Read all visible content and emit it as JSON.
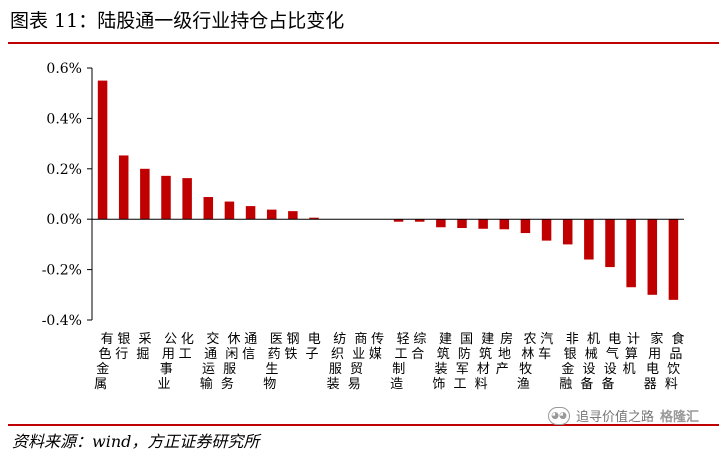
{
  "header": {
    "title": "图表 11：陆股通一级行业持仓占比变化"
  },
  "footer": {
    "source": "资料来源：wind，方正证券研究所"
  },
  "watermark": {
    "icon": "wechat-icon",
    "text": "追寻价值之路",
    "brand": "格隆汇"
  },
  "colors": {
    "bar": "#c00000",
    "rule": "#c00000",
    "axis": "#000000"
  },
  "chart_data": {
    "type": "bar",
    "title": "",
    "xlabel": "",
    "ylabel": "",
    "ylim": [
      -0.004,
      0.006
    ],
    "yticks": [
      0.006,
      0.004,
      0.002,
      0.0,
      -0.002,
      -0.004
    ],
    "ytick_labels": [
      "0.6%",
      "0.4%",
      "0.2%",
      "0.0%",
      "-0.2%",
      "-0.4%"
    ],
    "grid": false,
    "legend": "none",
    "categories": [
      "有色金属",
      "银行",
      "采掘",
      "公用事业",
      "化工",
      "交通运输",
      "休闲服务",
      "通信",
      "医药生物",
      "钢铁",
      "电子",
      "纺织服装",
      "商业贸易",
      "传媒",
      "轻工制造",
      "综合",
      "建筑装饰",
      "国防军工",
      "建筑材料",
      "房地产",
      "农林牧渔",
      "汽车",
      "非银金融",
      "机械设备",
      "电气设备",
      "计算机",
      "家用电器",
      "食品饮料"
    ],
    "values": [
      0.0055,
      0.00253,
      0.002,
      0.00172,
      0.00163,
      0.00088,
      0.0007,
      0.00052,
      0.00038,
      0.00032,
      6e-05,
      0.0,
      0.0,
      0.0,
      -0.0001,
      -0.0001,
      -0.00032,
      -0.00035,
      -0.00038,
      -0.0004,
      -0.00055,
      -0.00085,
      -0.001,
      -0.0016,
      -0.0019,
      -0.0027,
      -0.003,
      -0.0032
    ]
  }
}
